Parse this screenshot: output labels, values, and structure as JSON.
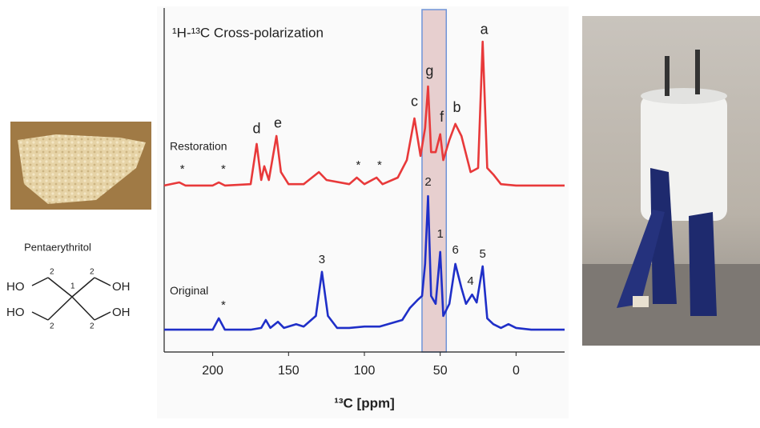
{
  "chart_data": {
    "type": "line",
    "title": "¹H-¹³C Cross-polarization",
    "x_label": "¹³C  [ppm]",
    "xlim": [
      232,
      -32
    ],
    "xticks": [
      200,
      150,
      100,
      50,
      0
    ],
    "ylim": [
      0,
      10
    ],
    "highlight_range": [
      62,
      46
    ],
    "highlight_color": "#e7cfcf",
    "series": [
      {
        "name": "Restoration",
        "color": "#e8393a",
        "x": [
          232,
          222,
          218,
          200,
          196,
          192,
          175,
          171,
          168,
          166,
          163,
          158,
          155,
          150,
          140,
          130,
          125,
          110,
          105,
          100,
          92,
          88,
          78,
          72,
          67,
          63,
          60,
          58,
          56,
          53,
          50,
          48,
          44,
          40,
          36,
          30,
          25,
          22,
          19,
          15,
          10,
          0,
          -10,
          -32
        ],
        "values": [
          4.84,
          4.93,
          4.84,
          4.84,
          4.93,
          4.84,
          4.88,
          6.05,
          5.0,
          5.4,
          5.0,
          6.28,
          5.23,
          4.88,
          4.88,
          5.23,
          5.0,
          4.88,
          5.07,
          4.88,
          5.07,
          4.88,
          5.07,
          5.58,
          6.79,
          5.7,
          6.51,
          7.72,
          5.81,
          5.81,
          6.33,
          5.58,
          6.16,
          6.63,
          6.28,
          5.23,
          5.35,
          9.02,
          5.35,
          5.16,
          4.88,
          4.84,
          4.84,
          4.84
        ]
      },
      {
        "name": "Original",
        "color": "#1f2fc8",
        "x": [
          232,
          200,
          196,
          192,
          175,
          168,
          165,
          162,
          157,
          153,
          145,
          140,
          132,
          128,
          124,
          118,
          110,
          100,
          90,
          75,
          70,
          65,
          62,
          60,
          58,
          56,
          53,
          50,
          48,
          44,
          40,
          36,
          33,
          29,
          26,
          22,
          19,
          15,
          10,
          5,
          0,
          -10,
          -32
        ],
        "values": [
          0.65,
          0.65,
          0.98,
          0.65,
          0.65,
          0.7,
          0.93,
          0.7,
          0.88,
          0.7,
          0.81,
          0.74,
          1.05,
          2.33,
          1.05,
          0.7,
          0.7,
          0.74,
          0.74,
          0.93,
          1.28,
          1.51,
          1.63,
          2.56,
          4.53,
          1.63,
          1.4,
          2.91,
          1.05,
          1.4,
          2.56,
          1.86,
          1.4,
          1.67,
          1.44,
          2.49,
          0.98,
          0.81,
          0.7,
          0.81,
          0.7,
          0.65,
          0.65
        ]
      }
    ],
    "annotations": [
      {
        "text": "a",
        "x": 21,
        "y": 9.35
      },
      {
        "text": "b",
        "x": 39,
        "y": 7.09
      },
      {
        "text": "c",
        "x": 67,
        "y": 7.26
      },
      {
        "text": "d",
        "x": 171,
        "y": 6.47
      },
      {
        "text": "e",
        "x": 157,
        "y": 6.63
      },
      {
        "text": "f",
        "x": 49,
        "y": 6.81
      },
      {
        "text": "g",
        "x": 57,
        "y": 8.14
      },
      {
        "text": "*",
        "x": 220,
        "y": 5.3
      },
      {
        "text": "*",
        "x": 193,
        "y": 5.3
      },
      {
        "text": "*",
        "x": 104,
        "y": 5.42
      },
      {
        "text": "*",
        "x": 90,
        "y": 5.42
      },
      {
        "text": "2",
        "x": 58,
        "y": 4.93
      },
      {
        "text": "1",
        "x": 50,
        "y": 3.42
      },
      {
        "text": "6",
        "x": 40,
        "y": 2.95
      },
      {
        "text": "5",
        "x": 22,
        "y": 2.84
      },
      {
        "text": "4",
        "x": 30,
        "y": 2.05
      },
      {
        "text": "3",
        "x": 128,
        "y": 2.67
      },
      {
        "text": "*",
        "x": 193,
        "y": 1.35
      }
    ]
  },
  "molecule": {
    "name": "Pentaerythritol",
    "labels": [
      "HO",
      "OH",
      "HO",
      "OH",
      "1",
      "2",
      "2",
      "2",
      "2"
    ]
  }
}
